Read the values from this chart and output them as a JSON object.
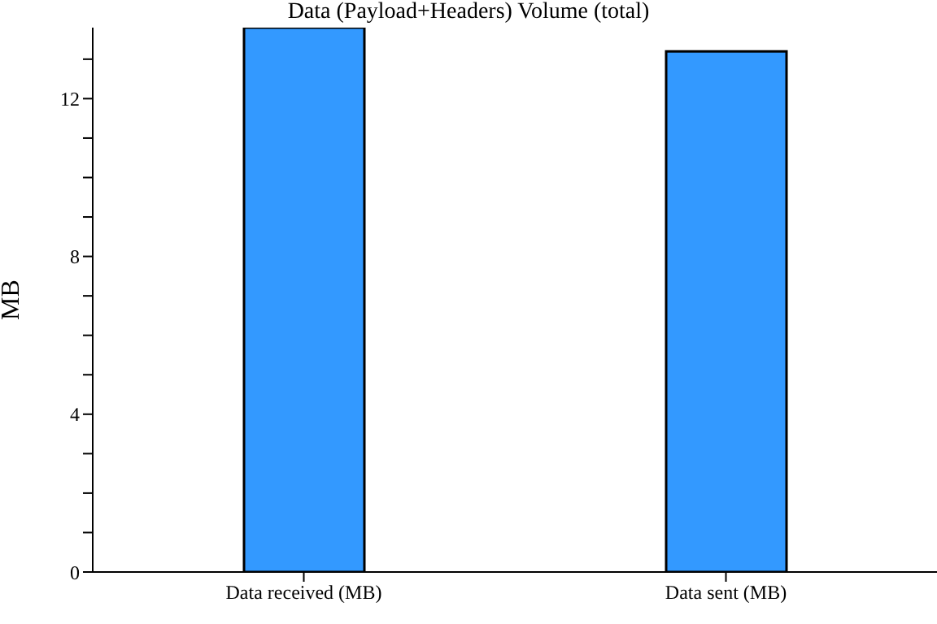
{
  "chart_data": {
    "type": "bar",
    "title": "Data (Payload+Headers) Volume (total)",
    "ylabel": "MB",
    "categories": [
      "Data received (MB)",
      "Data sent (MB)"
    ],
    "values": [
      13.8,
      13.2
    ],
    "color": "#3399ff",
    "ylim": [
      0,
      13.8
    ],
    "yticks": [
      0,
      {
        "value": 1,
        "label": null
      },
      {
        "value": 2,
        "label": null
      },
      {
        "value": 3,
        "label": null
      },
      4,
      {
        "value": 5,
        "label": null
      },
      {
        "value": 6,
        "label": null
      },
      {
        "value": 7,
        "label": null
      },
      8,
      {
        "value": 9,
        "label": null
      },
      {
        "value": 10,
        "label": null
      },
      {
        "value": 11,
        "label": null
      },
      12,
      {
        "value": 13,
        "label": null
      }
    ],
    "grid": false,
    "legend": false
  }
}
